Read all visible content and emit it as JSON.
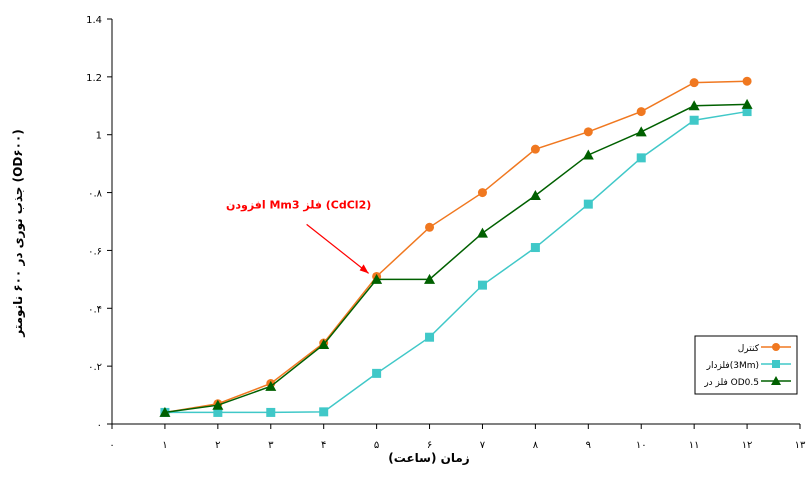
{
  "chart_data": {
    "type": "line",
    "title": "",
    "xlabel": "زمان (ساعت)",
    "ylabel": "جذب نوری در ۶۰۰ نانومتر (OD۶۰۰)",
    "xlim": [
      0,
      13
    ],
    "ylim": [
      0,
      1.4
    ],
    "x_tick_labels": [
      "۰",
      "۱",
      "۲",
      "۳",
      "۴",
      "۵",
      "۶",
      "۷",
      "۸",
      "۹",
      "۱۰",
      "۱۱",
      "۱۲",
      "۱۳"
    ],
    "y_tick_labels": [
      "۰",
      "۰.۲",
      "۰.۴",
      "۰.۶",
      "۰.۸",
      "1",
      "1.2",
      "1.4"
    ],
    "y_tick_values": [
      0,
      0.2,
      0.4,
      0.6,
      0.8,
      1.0,
      1.2,
      1.4
    ],
    "grid": false,
    "legend_position": "bottom-right",
    "annotation": {
      "text": "افزودن  Mm3  فلز (CdCl2)",
      "x": 5,
      "y": 0.5,
      "color": "#ff0000"
    },
    "series": [
      {
        "name": "کنترل",
        "color": "#f07820",
        "marker": "circle",
        "x": [
          1,
          2,
          3,
          4,
          5,
          6,
          7,
          8,
          9,
          10,
          11,
          12
        ],
        "values": [
          0.04,
          0.07,
          0.14,
          0.28,
          0.51,
          0.68,
          0.8,
          0.95,
          1.01,
          1.08,
          1.18,
          1.185
        ]
      },
      {
        "name": "فلزدار(3Mm)",
        "color": "#40c8c8",
        "marker": "square",
        "x": [
          1,
          2,
          3,
          4,
          5,
          6,
          7,
          8,
          9,
          10,
          11,
          12
        ],
        "values": [
          0.04,
          0.04,
          0.04,
          0.042,
          0.175,
          0.3,
          0.48,
          0.61,
          0.76,
          0.92,
          1.05,
          1.08
        ]
      },
      {
        "name": "فلز در OD0.5",
        "color": "#006000",
        "marker": "triangle",
        "x": [
          1,
          2,
          3,
          4,
          5,
          6,
          7,
          8,
          9,
          10,
          11,
          12
        ],
        "values": [
          0.04,
          0.065,
          0.13,
          0.275,
          0.5,
          0.5,
          0.66,
          0.79,
          0.93,
          1.01,
          1.1,
          1.105
        ]
      }
    ]
  }
}
